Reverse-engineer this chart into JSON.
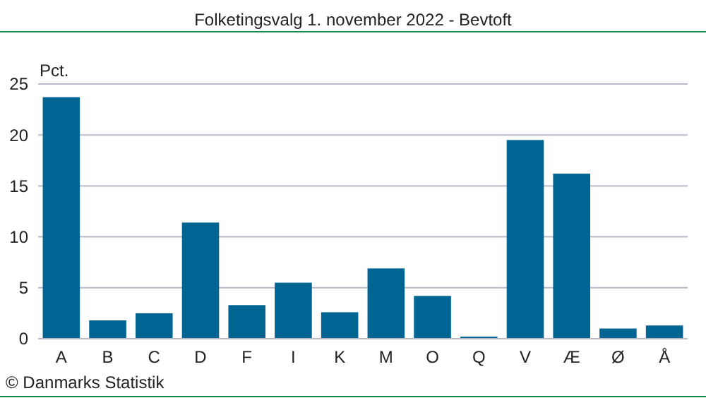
{
  "chart_data": {
    "type": "bar",
    "title": "Folketingsvalg 1. november 2022 - Bevtoft",
    "ylabel": "Pct.",
    "categories": [
      "A",
      "B",
      "C",
      "D",
      "F",
      "I",
      "K",
      "M",
      "O",
      "Q",
      "V",
      "Æ",
      "Ø",
      "Å"
    ],
    "values": [
      23.7,
      1.8,
      2.5,
      11.4,
      3.3,
      5.5,
      2.6,
      6.9,
      4.2,
      0.2,
      19.5,
      16.2,
      1.0,
      1.3
    ],
    "color": "#006593",
    "ylim": [
      0,
      25
    ],
    "yticks": [
      0,
      5,
      10,
      15,
      20,
      25
    ],
    "grid": "y",
    "annotations": [
      "© Danmarks Statistik"
    ]
  }
}
